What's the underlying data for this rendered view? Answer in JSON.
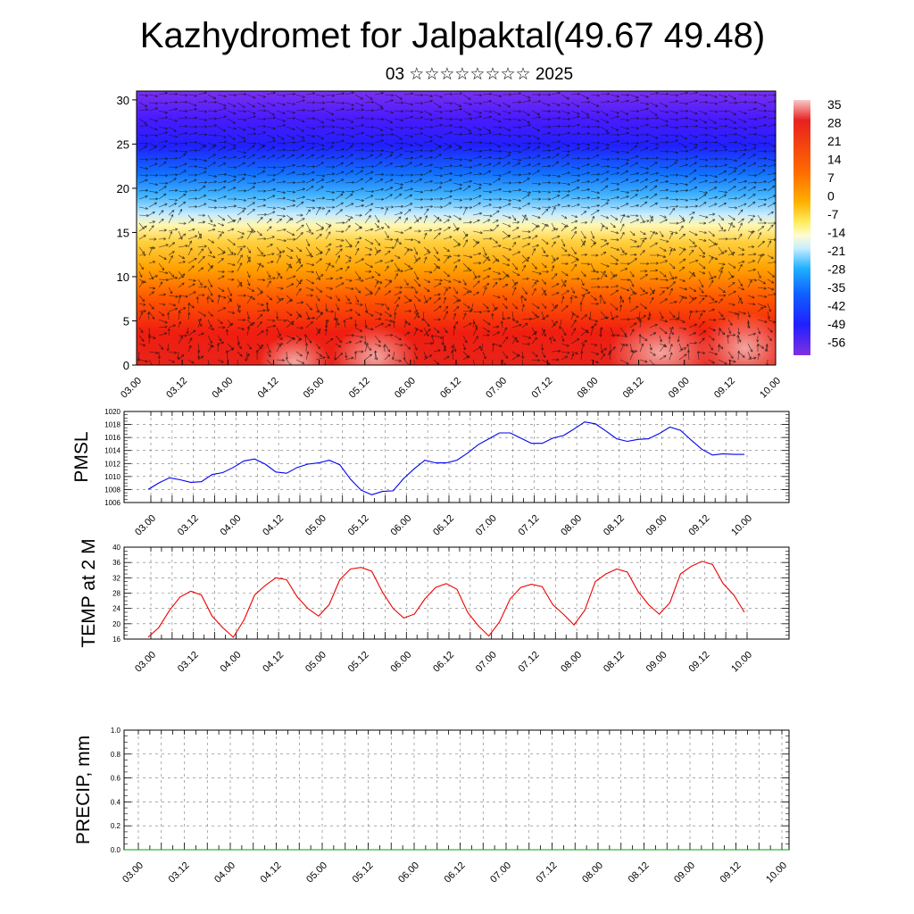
{
  "title": "Kazhydromet for Jalpaktal(49.67 49.48)",
  "subtitle": "03 ☆☆☆☆☆☆☆☆ 2025",
  "colors": {
    "pmsl_line": "#0000ee",
    "temp_line": "#ee0000",
    "precip_line": "#00aa00",
    "grid": "#555555"
  },
  "chart_data": [
    {
      "id": "cross_section",
      "type": "heatmap",
      "x_tick_labels": [
        "03.00",
        "03.12",
        "04.00",
        "04.12",
        "05.00",
        "05.12",
        "06.00",
        "06.12",
        "07.00",
        "07.12",
        "08.00",
        "08.12",
        "09.00",
        "09.12",
        "10.00"
      ],
      "y_ticks": [
        0,
        5,
        10,
        15,
        20,
        25,
        30
      ],
      "ylim": [
        0,
        31
      ],
      "colorbar_labels": [
        "35",
        "28",
        "21",
        "14",
        "7",
        "0",
        "-7",
        "-14",
        "-21",
        "-28",
        "-35",
        "-42",
        "-49",
        "-56"
      ],
      "colorbar_range": [
        -63,
        42
      ],
      "field": "temperature with wind vectors (height-time section)"
    },
    {
      "id": "pmsl",
      "type": "line",
      "ylabel": "PMSL",
      "ylim": [
        1006,
        1020
      ],
      "y_ticks": [
        1006,
        1008,
        1010,
        1012,
        1014,
        1016,
        1018,
        1020
      ],
      "x_tick_labels": [
        "03.00",
        "03.12",
        "04.00",
        "04.12",
        "05.00",
        "05.12",
        "06.00",
        "06.12",
        "07.00",
        "07.12",
        "08.00",
        "08.12",
        "09.00",
        "09.12",
        "10.00"
      ],
      "series": [
        {
          "values": [
            1008.0,
            1009.0,
            1009.8,
            1009.5,
            1009.1,
            1009.2,
            1010.3,
            1010.6,
            1011.4,
            1012.4,
            1012.7,
            1011.9,
            1010.7,
            1010.5,
            1011.4,
            1011.9,
            1012.1,
            1012.5,
            1011.8,
            1009.6,
            1007.9,
            1007.2,
            1007.7,
            1007.8,
            1009.7,
            1011.2,
            1012.5,
            1012.1,
            1012.1,
            1012.5,
            1013.6,
            1014.9,
            1015.8,
            1016.7,
            1016.7,
            1015.9,
            1015.1,
            1015.1,
            1015.9,
            1016.3,
            1017.3,
            1018.4,
            1018.1,
            1017.0,
            1015.8,
            1015.4,
            1015.7,
            1015.8,
            1016.6,
            1017.6,
            1017.1,
            1015.6,
            1014.2,
            1013.3,
            1013.5,
            1013.4,
            1013.4
          ]
        }
      ]
    },
    {
      "id": "temp",
      "type": "line",
      "ylabel": "TEMP at 2 M",
      "ylim": [
        16,
        40
      ],
      "y_ticks": [
        16,
        20,
        24,
        28,
        32,
        36,
        40
      ],
      "x_tick_labels": [
        "03.00",
        "03.12",
        "04.00",
        "04.12",
        "05.00",
        "05.12",
        "06.00",
        "06.12",
        "07.00",
        "07.12",
        "08.00",
        "08.12",
        "09.00",
        "09.12",
        "10.00"
      ],
      "series": [
        {
          "values": [
            16.5,
            19.0,
            23.5,
            27.0,
            28.5,
            27.5,
            22.0,
            19.0,
            16.5,
            21.0,
            27.5,
            30.0,
            32.0,
            31.5,
            27.0,
            24.0,
            22.0,
            25.0,
            31.5,
            34.3,
            34.7,
            33.7,
            28.3,
            24.0,
            21.5,
            22.5,
            26.5,
            29.5,
            30.5,
            29.0,
            23.0,
            19.5,
            16.8,
            20.5,
            26.5,
            29.5,
            30.3,
            29.7,
            25.0,
            22.5,
            19.7,
            23.5,
            31.0,
            33.0,
            34.3,
            33.5,
            28.5,
            25.0,
            22.5,
            25.5,
            33.0,
            35.0,
            36.3,
            35.5,
            30.5,
            27.5,
            23.0
          ]
        }
      ]
    },
    {
      "id": "precip",
      "type": "line",
      "ylabel": "PRECIP, mm",
      "ylim": [
        0.0,
        1.0
      ],
      "y_tick_labels": [
        "0.0",
        "0.2",
        "0.4",
        "0.6",
        "0.8",
        "1.0"
      ],
      "x_tick_labels": [
        "03.00",
        "03.12",
        "04.00",
        "04.12",
        "05.00",
        "05.12",
        "06.00",
        "06.12",
        "07.00",
        "07.12",
        "08.00",
        "08.12",
        "09.00",
        "09.12",
        "10.00"
      ],
      "series": [
        {
          "values": [
            0,
            0,
            0,
            0,
            0,
            0,
            0,
            0,
            0,
            0,
            0,
            0,
            0,
            0,
            0,
            0,
            0,
            0,
            0,
            0,
            0,
            0,
            0,
            0,
            0,
            0,
            0,
            0,
            0,
            0,
            0,
            0,
            0,
            0,
            0,
            0,
            0,
            0,
            0,
            0,
            0,
            0,
            0,
            0,
            0,
            0,
            0,
            0,
            0,
            0,
            0,
            0,
            0,
            0,
            0,
            0,
            0
          ]
        }
      ]
    }
  ]
}
